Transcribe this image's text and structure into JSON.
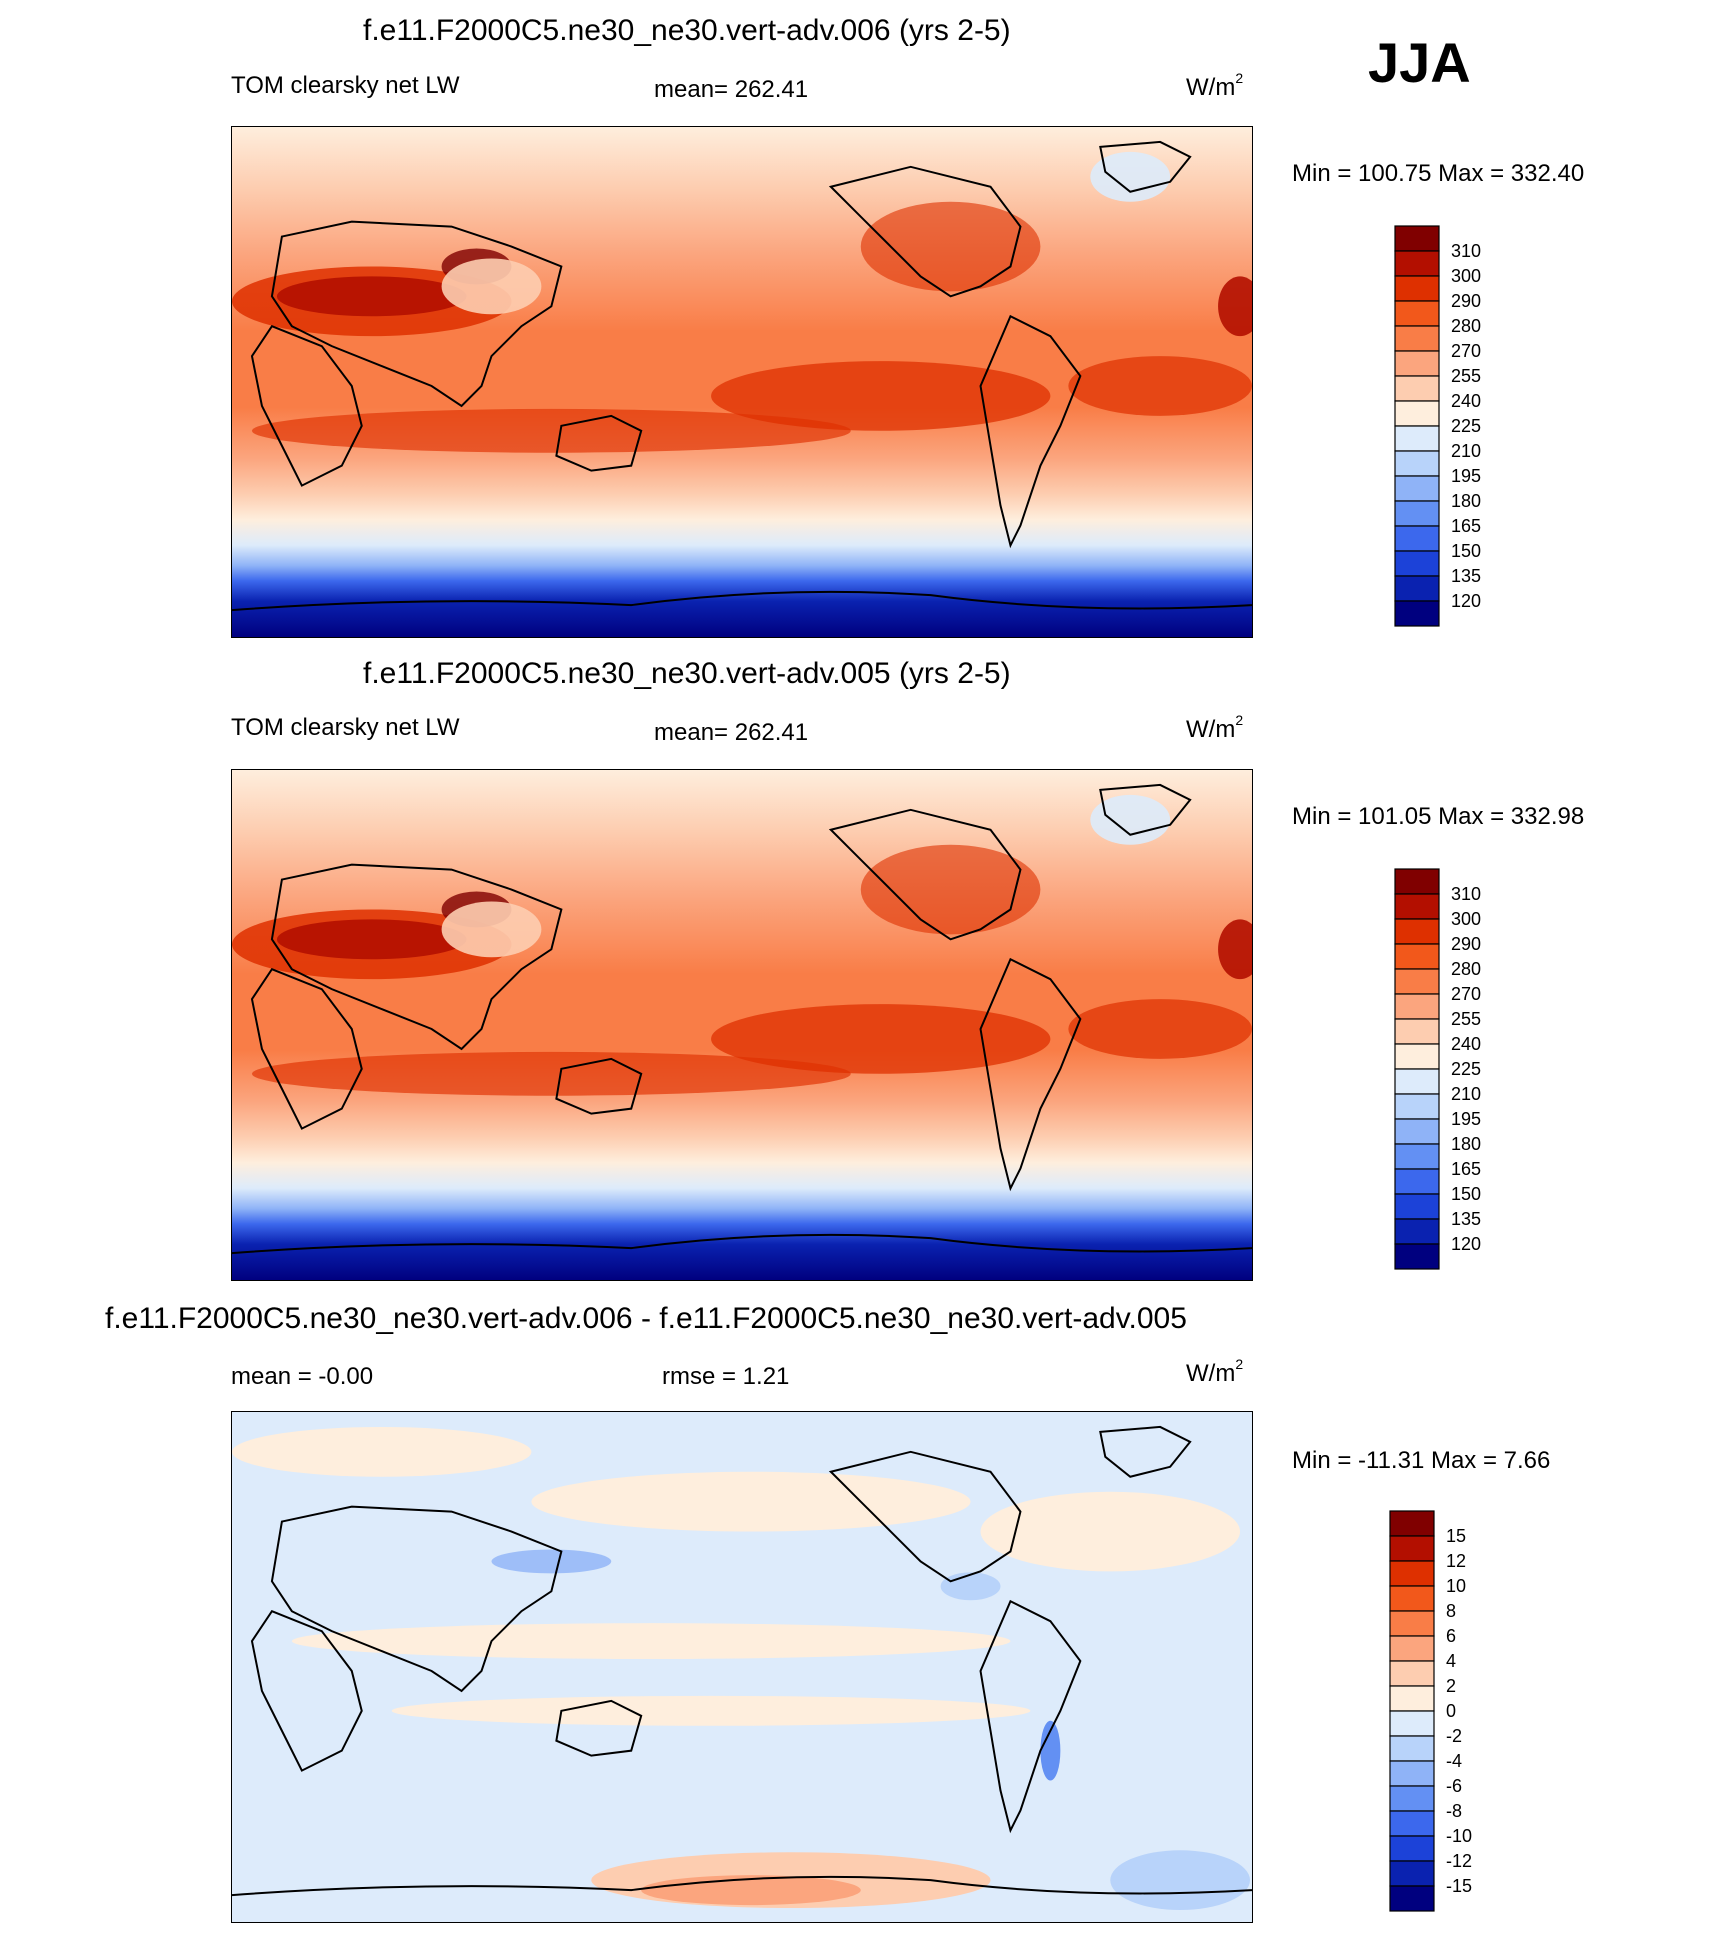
{
  "season": "JJA",
  "units": "W/m",
  "units_sup": "2",
  "panels": [
    {
      "title": "f.e11.F2000C5.ne30_ne30.vert-adv.006 (yrs 2-5)",
      "left": "TOM clearsky net LW",
      "center": "mean= 262.41",
      "minmax": "Min = 100.75 Max = 332.40"
    },
    {
      "title": "f.e11.F2000C5.ne30_ne30.vert-adv.005 (yrs 2-5)",
      "left": "TOM clearsky net LW",
      "center": "mean= 262.41",
      "minmax": "Min = 101.05 Max = 332.98"
    },
    {
      "title": "f.e11.F2000C5.ne30_ne30.vert-adv.006 - f.e11.F2000C5.ne30_ne30.vert-adv.005",
      "left": "mean =  -0.00",
      "center": "rmse =   1.21",
      "minmax": "Min = -11.31 Max =   7.66"
    }
  ],
  "colorbars": {
    "field": {
      "labels": [
        "310",
        "300",
        "290",
        "280",
        "270",
        "255",
        "240",
        "225",
        "210",
        "195",
        "180",
        "165",
        "150",
        "135",
        "120"
      ],
      "colors": [
        "#800000",
        "#b30f00",
        "#de3000",
        "#f2581b",
        "#f97d47",
        "#fba57e",
        "#fdcdb0",
        "#feeedd",
        "#ddebfb",
        "#b8d3fa",
        "#8fb3f7",
        "#6390f3",
        "#3c68ed",
        "#1c42d8",
        "#0a22b0",
        "#00007f"
      ]
    },
    "diff": {
      "labels": [
        "15",
        "12",
        "10",
        "8",
        "6",
        "4",
        "2",
        "0",
        "-2",
        "-4",
        "-6",
        "-8",
        "-10",
        "-12",
        "-15"
      ],
      "colors": [
        "#800000",
        "#b30f00",
        "#de3000",
        "#f2581b",
        "#f97d47",
        "#fba57e",
        "#fdcdb0",
        "#feeedd",
        "#ddebfb",
        "#b8d3fa",
        "#8fb3f7",
        "#6390f3",
        "#3c68ed",
        "#1c42d8",
        "#0a22b0",
        "#00007f"
      ]
    }
  }
}
